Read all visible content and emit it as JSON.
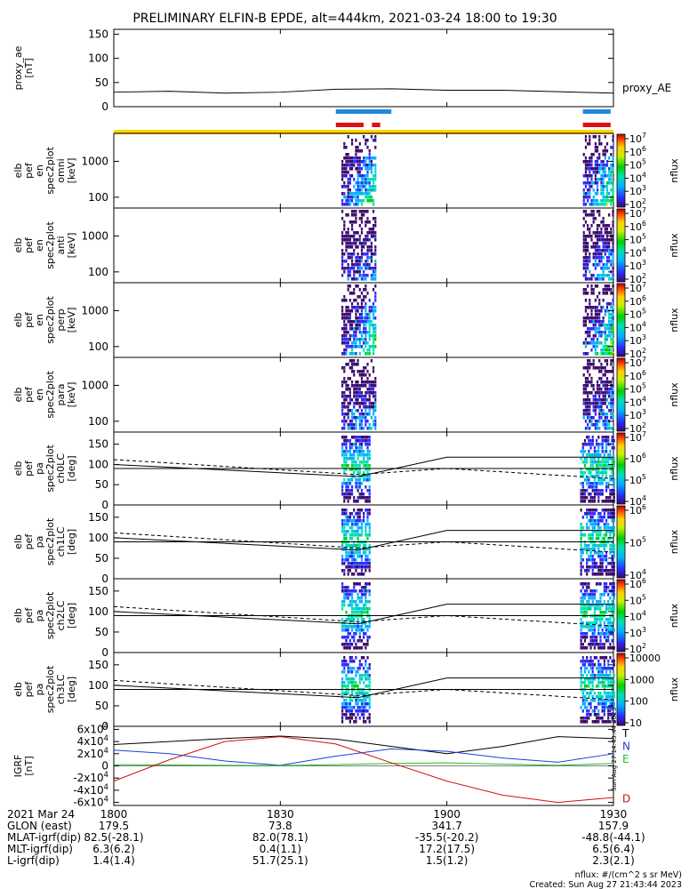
{
  "title": "PRELIMINARY ELFIN-B EPDE, alt=444km, 2021-03-24 18:00 to 19:30",
  "chart_data": [
    {
      "panel": "proxy_ae",
      "type": "line",
      "ylabel": [
        "proxy_ae",
        "[nT]"
      ],
      "yticks": [
        "0",
        "50",
        "100",
        "150"
      ],
      "ylim": [
        0,
        160
      ],
      "series": [
        {
          "name": "proxy_AE",
          "x": [
            0,
            10,
            20,
            30,
            40,
            50,
            60,
            70,
            80,
            90
          ],
          "values": [
            30,
            32,
            28,
            30,
            36,
            37,
            34,
            34,
            31,
            28
          ]
        }
      ]
    },
    {
      "panel": "bars",
      "type": "bar",
      "bars": [
        {
          "color": "#1e88e5",
          "ranges": [
            [
              40,
              50
            ],
            [
              84.5,
              89.5
            ]
          ]
        },
        {
          "color": "#e01010",
          "ranges": [
            [
              40,
              45
            ],
            [
              46.5,
              48
            ],
            [
              84.5,
              89.5
            ]
          ]
        },
        {
          "color": "#ffd600",
          "ranges": [
            [
              0,
              90
            ]
          ]
        }
      ]
    },
    {
      "panel": "spec_omni",
      "type": "heatmap",
      "ylabel": [
        "elb",
        "pef",
        "en",
        "spec2plot",
        "omni",
        "[keV]"
      ],
      "yticks": [
        "100",
        "1000"
      ],
      "cbar_ticks": [
        "10^2",
        "10^3",
        "10^4",
        "10^5",
        "10^6",
        "10^7"
      ],
      "cbar_label": "nflux"
    },
    {
      "panel": "spec_anti",
      "type": "heatmap",
      "ylabel": [
        "elb",
        "pef",
        "en",
        "spec2plot",
        "anti",
        "[keV]"
      ],
      "yticks": [
        "100",
        "1000"
      ],
      "cbar_ticks": [
        "10^2",
        "10^3",
        "10^4",
        "10^5",
        "10^6",
        "10^7"
      ],
      "cbar_label": "nflux"
    },
    {
      "panel": "spec_perp",
      "type": "heatmap",
      "ylabel": [
        "elb",
        "pef",
        "en",
        "spec2plot",
        "perp",
        "[keV]"
      ],
      "yticks": [
        "100",
        "1000"
      ],
      "cbar_ticks": [
        "10^2",
        "10^3",
        "10^4",
        "10^5",
        "10^6",
        "10^7"
      ],
      "cbar_label": "nflux"
    },
    {
      "panel": "spec_para",
      "type": "heatmap",
      "ylabel": [
        "elb",
        "pef",
        "en",
        "spec2plot",
        "para",
        "[keV]"
      ],
      "yticks": [
        "100",
        "1000"
      ],
      "cbar_ticks": [
        "10^2",
        "10^3",
        "10^4",
        "10^5",
        "10^6",
        "10^7"
      ],
      "cbar_label": "nflux"
    },
    {
      "panel": "pa_ch0",
      "type": "heatmap",
      "ylabel": [
        "elb",
        "pef",
        "pa",
        "spec2plot",
        "ch0LC",
        "[deg]"
      ],
      "yticks": [
        "0",
        "50",
        "100",
        "150"
      ],
      "cbar_ticks": [
        "10^4",
        "10^5",
        "10^6",
        "10^7"
      ],
      "cbar_label": "nflux"
    },
    {
      "panel": "pa_ch1",
      "type": "heatmap",
      "ylabel": [
        "elb",
        "pef",
        "pa",
        "spec2plot",
        "ch1LC",
        "[deg]"
      ],
      "yticks": [
        "0",
        "50",
        "100",
        "150"
      ],
      "cbar_ticks": [
        "10^4",
        "10^5",
        "10^6"
      ],
      "cbar_label": "nflux"
    },
    {
      "panel": "pa_ch2",
      "type": "heatmap",
      "ylabel": [
        "elb",
        "pef",
        "pa",
        "spec2plot",
        "ch2LC",
        "[deg]"
      ],
      "yticks": [
        "0",
        "50",
        "100",
        "150"
      ],
      "cbar_ticks": [
        "10^2",
        "10^3",
        "10^4",
        "10^5",
        "10^6"
      ],
      "cbar_label": "nflux"
    },
    {
      "panel": "pa_ch3",
      "type": "heatmap",
      "ylabel": [
        "elb",
        "pef",
        "pa",
        "spec2plot",
        "ch3LC",
        "[deg]"
      ],
      "yticks": [
        "0",
        "50",
        "100",
        "150"
      ],
      "cbar_ticks": [
        "10",
        "100",
        "1000",
        "10000"
      ],
      "cbar_label": "nflux"
    },
    {
      "panel": "igrf",
      "type": "line",
      "ylabel": [
        "IGRF",
        "[nT]"
      ],
      "yticks": [
        "-6x10^4",
        "-4x10^4",
        "-2x10^4",
        "0",
        "2x10^4",
        "4x10^4",
        "6x10^4"
      ],
      "ylim": [
        -65000,
        65000
      ],
      "series": [
        {
          "name": "T",
          "color": "#000000",
          "x": [
            0,
            10,
            20,
            30,
            40,
            50,
            60,
            70,
            80,
            90
          ],
          "values": [
            35000,
            40000,
            45000,
            49000,
            44000,
            32000,
            20000,
            32000,
            48000,
            45000
          ]
        },
        {
          "name": "N",
          "color": "#1f3fd0",
          "x": [
            0,
            10,
            20,
            30,
            40,
            50,
            60,
            70,
            80,
            90
          ],
          "values": [
            26000,
            20000,
            8000,
            1000,
            16000,
            28000,
            24000,
            13000,
            6000,
            20000
          ]
        },
        {
          "name": "E",
          "color": "#20c020",
          "x": [
            0,
            10,
            20,
            30,
            40,
            50,
            60,
            70,
            80,
            90
          ],
          "values": [
            2000,
            1500,
            1000,
            500,
            2000,
            4000,
            5000,
            3000,
            1000,
            4000
          ]
        },
        {
          "name": "D",
          "color": "#d01010",
          "x": [
            0,
            10,
            20,
            30,
            40,
            50,
            60,
            70,
            80,
            90
          ],
          "values": [
            -25000,
            10000,
            40000,
            48000,
            36000,
            5000,
            -25000,
            -48000,
            -60000,
            -52000
          ]
        }
      ]
    }
  ],
  "xaxis": {
    "ticks": [
      {
        "t": 0,
        "cols": [
          "1800",
          "179.5",
          "82.5(-28.1)",
          "6.3(6.2)",
          "1.4(1.4)"
        ]
      },
      {
        "t": 30,
        "cols": [
          "1830",
          "73.8",
          "82.0(78.1)",
          "0.4(1.1)",
          "51.7(25.1)"
        ]
      },
      {
        "t": 60,
        "cols": [
          "1900",
          "341.7",
          "-35.5(-20.2)",
          "17.2(17.5)",
          "1.5(1.2)"
        ]
      },
      {
        "t": 90,
        "cols": [
          "1930",
          "157.9",
          "-48.8(-44.1)",
          "6.5(6.4)",
          "2.3(2.1)"
        ]
      }
    ],
    "row_labels": [
      "2021 Mar 24",
      "GLON (east)",
      "MLAT-igrf(dip)",
      "MLT-igrf(dip)",
      "L-igrf(dip)"
    ]
  },
  "footer": {
    "units": "nflux: #/(cm^2 s sr MeV)",
    "created": "Created: Sun Aug 27 21:43:44 2023",
    "vertical_stamp": "Sun Aug 27 14:43:44 2023"
  },
  "colors": {
    "bar_blue": "#1e88e5",
    "bar_red": "#e01010",
    "bar_yellow": "#ffd600"
  }
}
